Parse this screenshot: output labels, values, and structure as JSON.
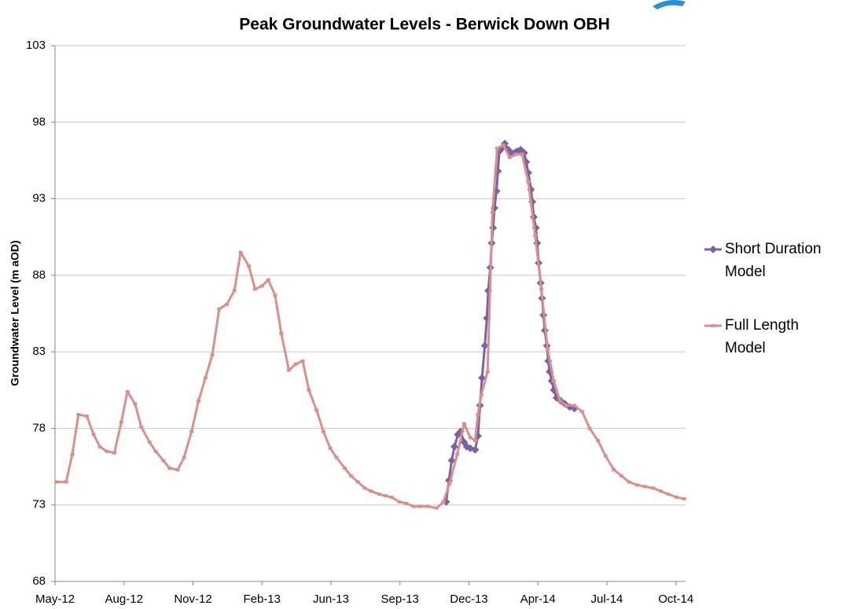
{
  "chart_data": {
    "type": "line",
    "title": "Peak Groundwater Levels - Berwick Down OBH",
    "y_label": "Groundwater Level (m aOD)",
    "xlim": [
      0,
      9.14
    ],
    "xticks": [
      {
        "value": 0,
        "label": "May-12"
      },
      {
        "value": 1,
        "label": "Aug-12"
      },
      {
        "value": 2,
        "label": "Nov-12"
      },
      {
        "value": 3,
        "label": "Feb-13"
      },
      {
        "value": 4,
        "label": "Jun-13"
      },
      {
        "value": 5,
        "label": "Sep-13"
      },
      {
        "value": 6,
        "label": "Dec-13"
      },
      {
        "value": 7,
        "label": "Apr-14"
      },
      {
        "value": 8,
        "label": "Jul-14"
      },
      {
        "value": 9,
        "label": "Oct-14"
      }
    ],
    "ylim": [
      68,
      103
    ],
    "yticks": [
      68,
      73,
      78,
      83,
      88,
      93,
      98,
      103
    ],
    "grid": true,
    "legend": "right",
    "series": [
      {
        "name": "Short Duration Model",
        "color": "#7b62a3",
        "marker": "diamond",
        "x": [
          5.67,
          5.71,
          5.75,
          5.79,
          5.84,
          5.88,
          5.93,
          5.97,
          6.02,
          6.09,
          6.13,
          6.16,
          6.19,
          6.23,
          6.26,
          6.28,
          6.31,
          6.33,
          6.35,
          6.37,
          6.4,
          6.42,
          6.44,
          6.48,
          6.52,
          6.57,
          6.61,
          6.66,
          6.7,
          6.75,
          6.8,
          6.83,
          6.86,
          6.9,
          6.92,
          6.94,
          6.97,
          6.99,
          7.01,
          7.04,
          7.06,
          7.08,
          7.1,
          7.13,
          7.15,
          7.17,
          7.2,
          7.23,
          7.27,
          7.33,
          7.39,
          7.46,
          7.53
        ],
        "values": [
          73.2,
          74.6,
          75.9,
          76.8,
          77.6,
          77.8,
          77.1,
          76.8,
          76.7,
          76.6,
          77.5,
          79.5,
          81.3,
          83.4,
          85.2,
          87.0,
          88.5,
          90.1,
          91.1,
          92.4,
          93.5,
          94.8,
          96.1,
          96.3,
          96.6,
          96.2,
          96.0,
          96.0,
          96.1,
          96.2,
          96.0,
          95.4,
          94.7,
          93.6,
          92.8,
          91.8,
          91.1,
          90.1,
          88.8,
          87.5,
          86.5,
          85.4,
          84.4,
          83.4,
          82.4,
          81.7,
          81.1,
          80.5,
          80.0,
          79.8,
          79.6,
          79.4,
          79.3
        ]
      },
      {
        "name": "Full Length Model",
        "color": "#d9908d",
        "marker": "square",
        "x": [
          0.02,
          0.16,
          0.25,
          0.34,
          0.46,
          0.56,
          0.65,
          0.75,
          0.86,
          0.96,
          1.05,
          1.16,
          1.25,
          1.37,
          1.46,
          1.57,
          1.66,
          1.78,
          1.87,
          1.98,
          2.08,
          2.18,
          2.28,
          2.38,
          2.49,
          2.6,
          2.69,
          2.81,
          2.9,
          3.0,
          3.09,
          3.19,
          3.28,
          3.39,
          3.49,
          3.59,
          3.68,
          3.79,
          3.89,
          3.99,
          4.08,
          4.2,
          4.29,
          4.39,
          4.49,
          4.58,
          4.7,
          4.79,
          4.88,
          4.99,
          5.09,
          5.2,
          5.29,
          5.4,
          5.53,
          5.63,
          5.72,
          5.83,
          5.93,
          6.02,
          6.09,
          6.13,
          6.18,
          6.27,
          6.34,
          6.41,
          6.5,
          6.59,
          6.68,
          6.77,
          6.86,
          6.96,
          7.05,
          7.14,
          7.23,
          7.32,
          7.41,
          7.53,
          7.64,
          7.75,
          7.87,
          7.98,
          8.1,
          8.21,
          8.32,
          8.44,
          8.55,
          8.67,
          8.78,
          8.89,
          9.01,
          9.12
        ],
        "values": [
          74.5,
          74.5,
          76.3,
          78.9,
          78.8,
          77.6,
          76.8,
          76.5,
          76.4,
          78.4,
          80.4,
          79.6,
          78.1,
          77.1,
          76.5,
          75.9,
          75.4,
          75.3,
          76.1,
          77.8,
          79.8,
          81.3,
          82.8,
          85.8,
          86.1,
          87.0,
          89.5,
          88.6,
          87.1,
          87.3,
          87.7,
          86.7,
          84.2,
          81.8,
          82.2,
          82.4,
          80.5,
          79.2,
          77.8,
          76.7,
          76.1,
          75.4,
          74.9,
          74.5,
          74.1,
          73.9,
          73.7,
          73.6,
          73.5,
          73.2,
          73.1,
          72.9,
          72.9,
          72.9,
          72.8,
          73.2,
          74.4,
          76.3,
          78.3,
          77.4,
          77.2,
          78.9,
          80.2,
          81.7,
          92.1,
          96.3,
          96.5,
          95.7,
          95.9,
          95.9,
          94.1,
          90.6,
          87.1,
          83.2,
          81.1,
          79.8,
          79.5,
          79.5,
          79.1,
          78.0,
          77.2,
          76.2,
          75.3,
          74.9,
          74.5,
          74.3,
          74.2,
          74.1,
          73.9,
          73.7,
          73.5,
          73.4
        ]
      }
    ]
  }
}
